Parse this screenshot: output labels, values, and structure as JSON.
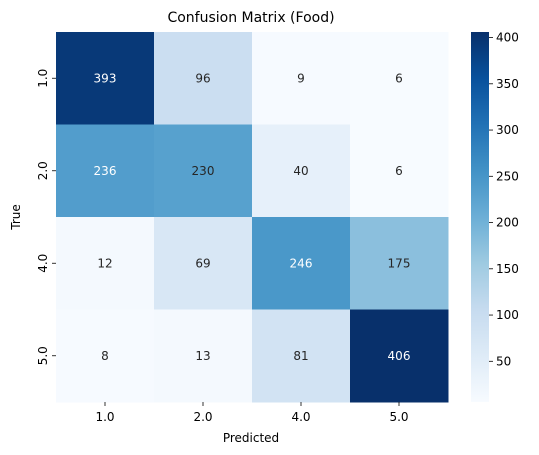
{
  "chart_data": {
    "type": "heatmap",
    "title": "Confusion Matrix (Food)",
    "xlabel": "Predicted",
    "ylabel": "True",
    "x_categories": [
      "1.0",
      "2.0",
      "4.0",
      "5.0"
    ],
    "y_categories": [
      "1.0",
      "2.0",
      "4.0",
      "5.0"
    ],
    "values": [
      [
        393,
        96,
        9,
        6
      ],
      [
        236,
        230,
        40,
        6
      ],
      [
        12,
        69,
        246,
        175
      ],
      [
        8,
        13,
        81,
        406
      ]
    ],
    "colormap": "Blues",
    "colorbar": {
      "range": [
        6,
        406
      ],
      "ticks": [
        50,
        100,
        150,
        200,
        250,
        300,
        350,
        400
      ]
    },
    "grid": false
  }
}
